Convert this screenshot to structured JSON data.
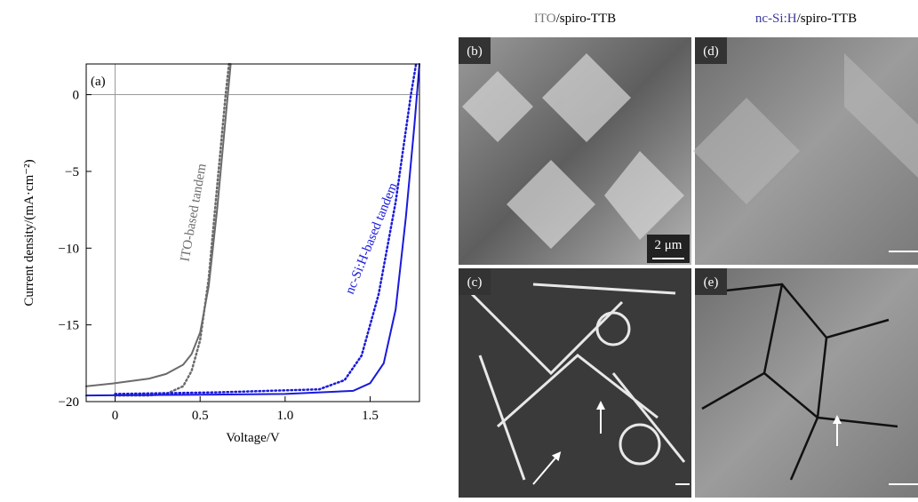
{
  "chart_data": {
    "type": "line",
    "panel_label": "(a)",
    "x_label": "Voltage/V",
    "y_label": "Current density/(mA·cm⁻²)",
    "xlim": [
      -0.17,
      1.79
    ],
    "ylim": [
      -20,
      2
    ],
    "xticks": [
      0,
      0.5,
      {
        "value": 1,
        "label": "1.0"
      },
      1.5
    ],
    "yticks": [
      {
        "value": -20,
        "label": "−20"
      },
      {
        "value": -15,
        "label": "−15"
      },
      {
        "value": -10,
        "label": "−10"
      },
      {
        "value": -5,
        "label": "−5"
      },
      0
    ],
    "series": [
      {
        "color": "#6b6b6b",
        "style": "solid",
        "x": [
          -0.17,
          0,
          0.2,
          0.3,
          0.4,
          0.45,
          0.5,
          0.55,
          0.6,
          0.65,
          0.68
        ],
        "values": [
          -19,
          -18.8,
          -18.5,
          -18.2,
          -17.6,
          -16.9,
          -15.5,
          -12.5,
          -7.5,
          -1.5,
          2
        ]
      },
      {
        "color": "#6b6b6b",
        "style": "dotted",
        "x": [
          0,
          0.2,
          0.3,
          0.4,
          0.45,
          0.5,
          0.55,
          0.6,
          0.65,
          0.67
        ],
        "values": [
          -19.6,
          -19.6,
          -19.5,
          -19,
          -18,
          -16,
          -12,
          -6,
          0,
          2
        ]
      },
      {
        "color": "#1a1adb",
        "style": "solid",
        "x": [
          -0.17,
          0.5,
          1,
          1.4,
          1.5,
          1.58,
          1.65,
          1.71,
          1.76,
          1.79
        ],
        "values": [
          -19.6,
          -19.55,
          -19.5,
          -19.3,
          -18.8,
          -17.5,
          -14,
          -8,
          -2,
          2
        ]
      },
      {
        "color": "#1a1adb",
        "style": "dotted",
        "x": [
          0,
          0.6,
          1.2,
          1.35,
          1.45,
          1.55,
          1.65,
          1.74,
          1.77
        ],
        "values": [
          -19.5,
          -19.4,
          -19.2,
          -18.6,
          -17,
          -13,
          -7,
          0,
          2
        ]
      }
    ],
    "annotations": [
      {
        "text": "ITO-based tandem",
        "color": "#6b6b6b"
      },
      {
        "text": "nc-Si:H-based tandem",
        "color": "#1a1adb"
      }
    ]
  },
  "images": {
    "headers": [
      {
        "colored": "ITO",
        "rest": "/spiro-TTB"
      },
      {
        "colored": "nc-Si:H",
        "rest": "/spiro-TTB"
      }
    ],
    "panels": [
      "(b)",
      "(c)",
      "(d)",
      "(e)"
    ],
    "scale_bar": "2 μm"
  }
}
